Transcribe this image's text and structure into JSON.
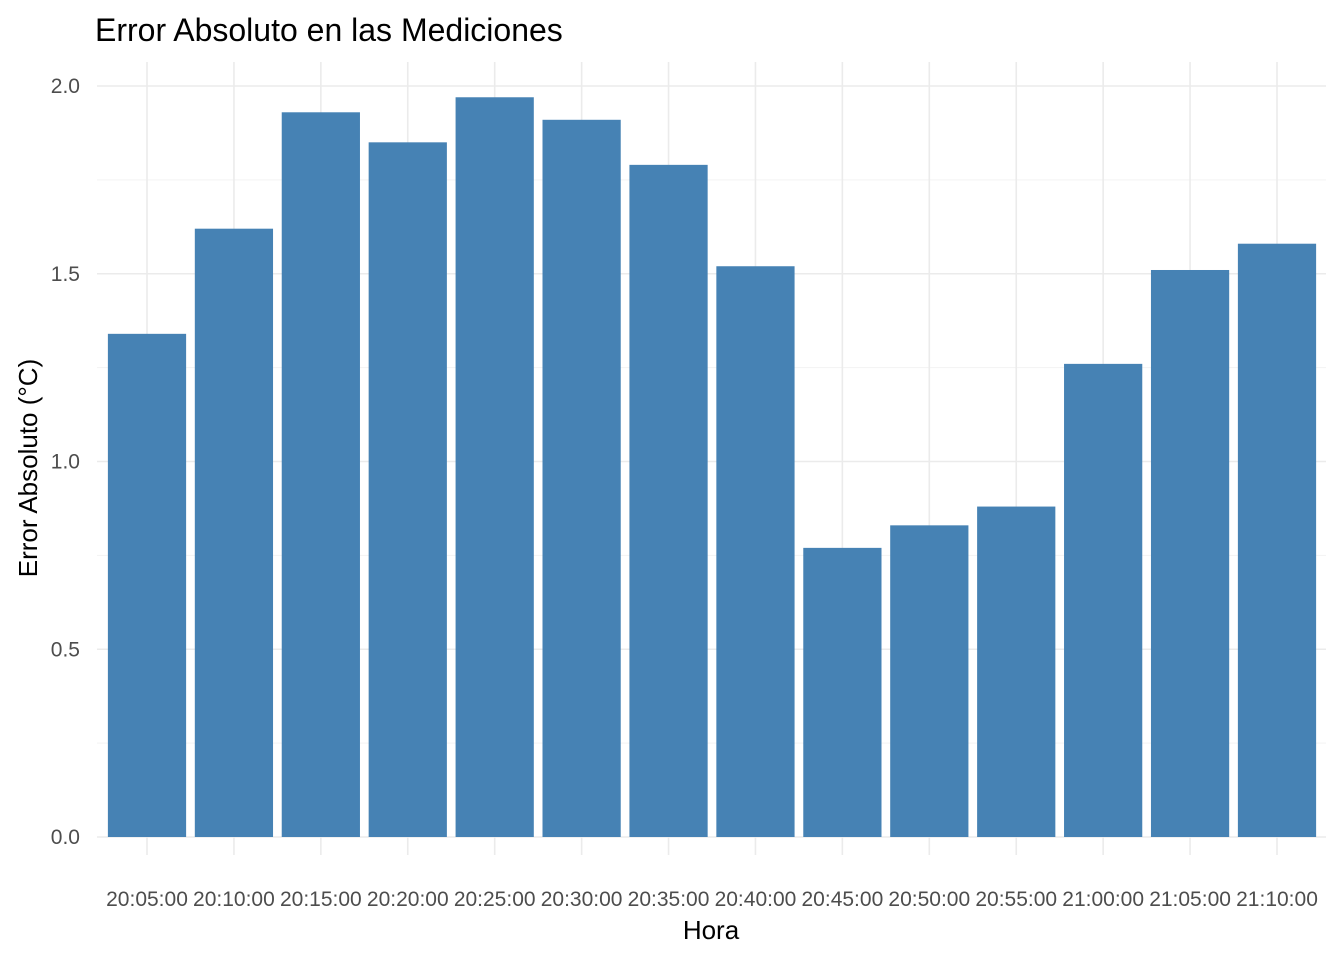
{
  "chart_data": {
    "type": "bar",
    "title": "Error Absoluto en las Mediciones",
    "xlabel": "Hora",
    "ylabel": "Error Absoluto (°C)",
    "categories": [
      "20:05:00",
      "20:10:00",
      "20:15:00",
      "20:20:00",
      "20:25:00",
      "20:30:00",
      "20:35:00",
      "20:40:00",
      "20:45:00",
      "20:50:00",
      "20:55:00",
      "21:00:00",
      "21:05:00",
      "21:10:00"
    ],
    "values": [
      1.34,
      1.62,
      1.93,
      1.85,
      1.97,
      1.91,
      1.79,
      1.52,
      0.77,
      0.83,
      0.88,
      1.26,
      1.51,
      1.58
    ],
    "ylim": [
      0,
      2.0
    ],
    "yticks": [
      "0.0",
      "0.5",
      "1.0",
      "1.5",
      "2.0"
    ],
    "bar_color": "#4682B4",
    "grid": true,
    "legend": "none"
  }
}
